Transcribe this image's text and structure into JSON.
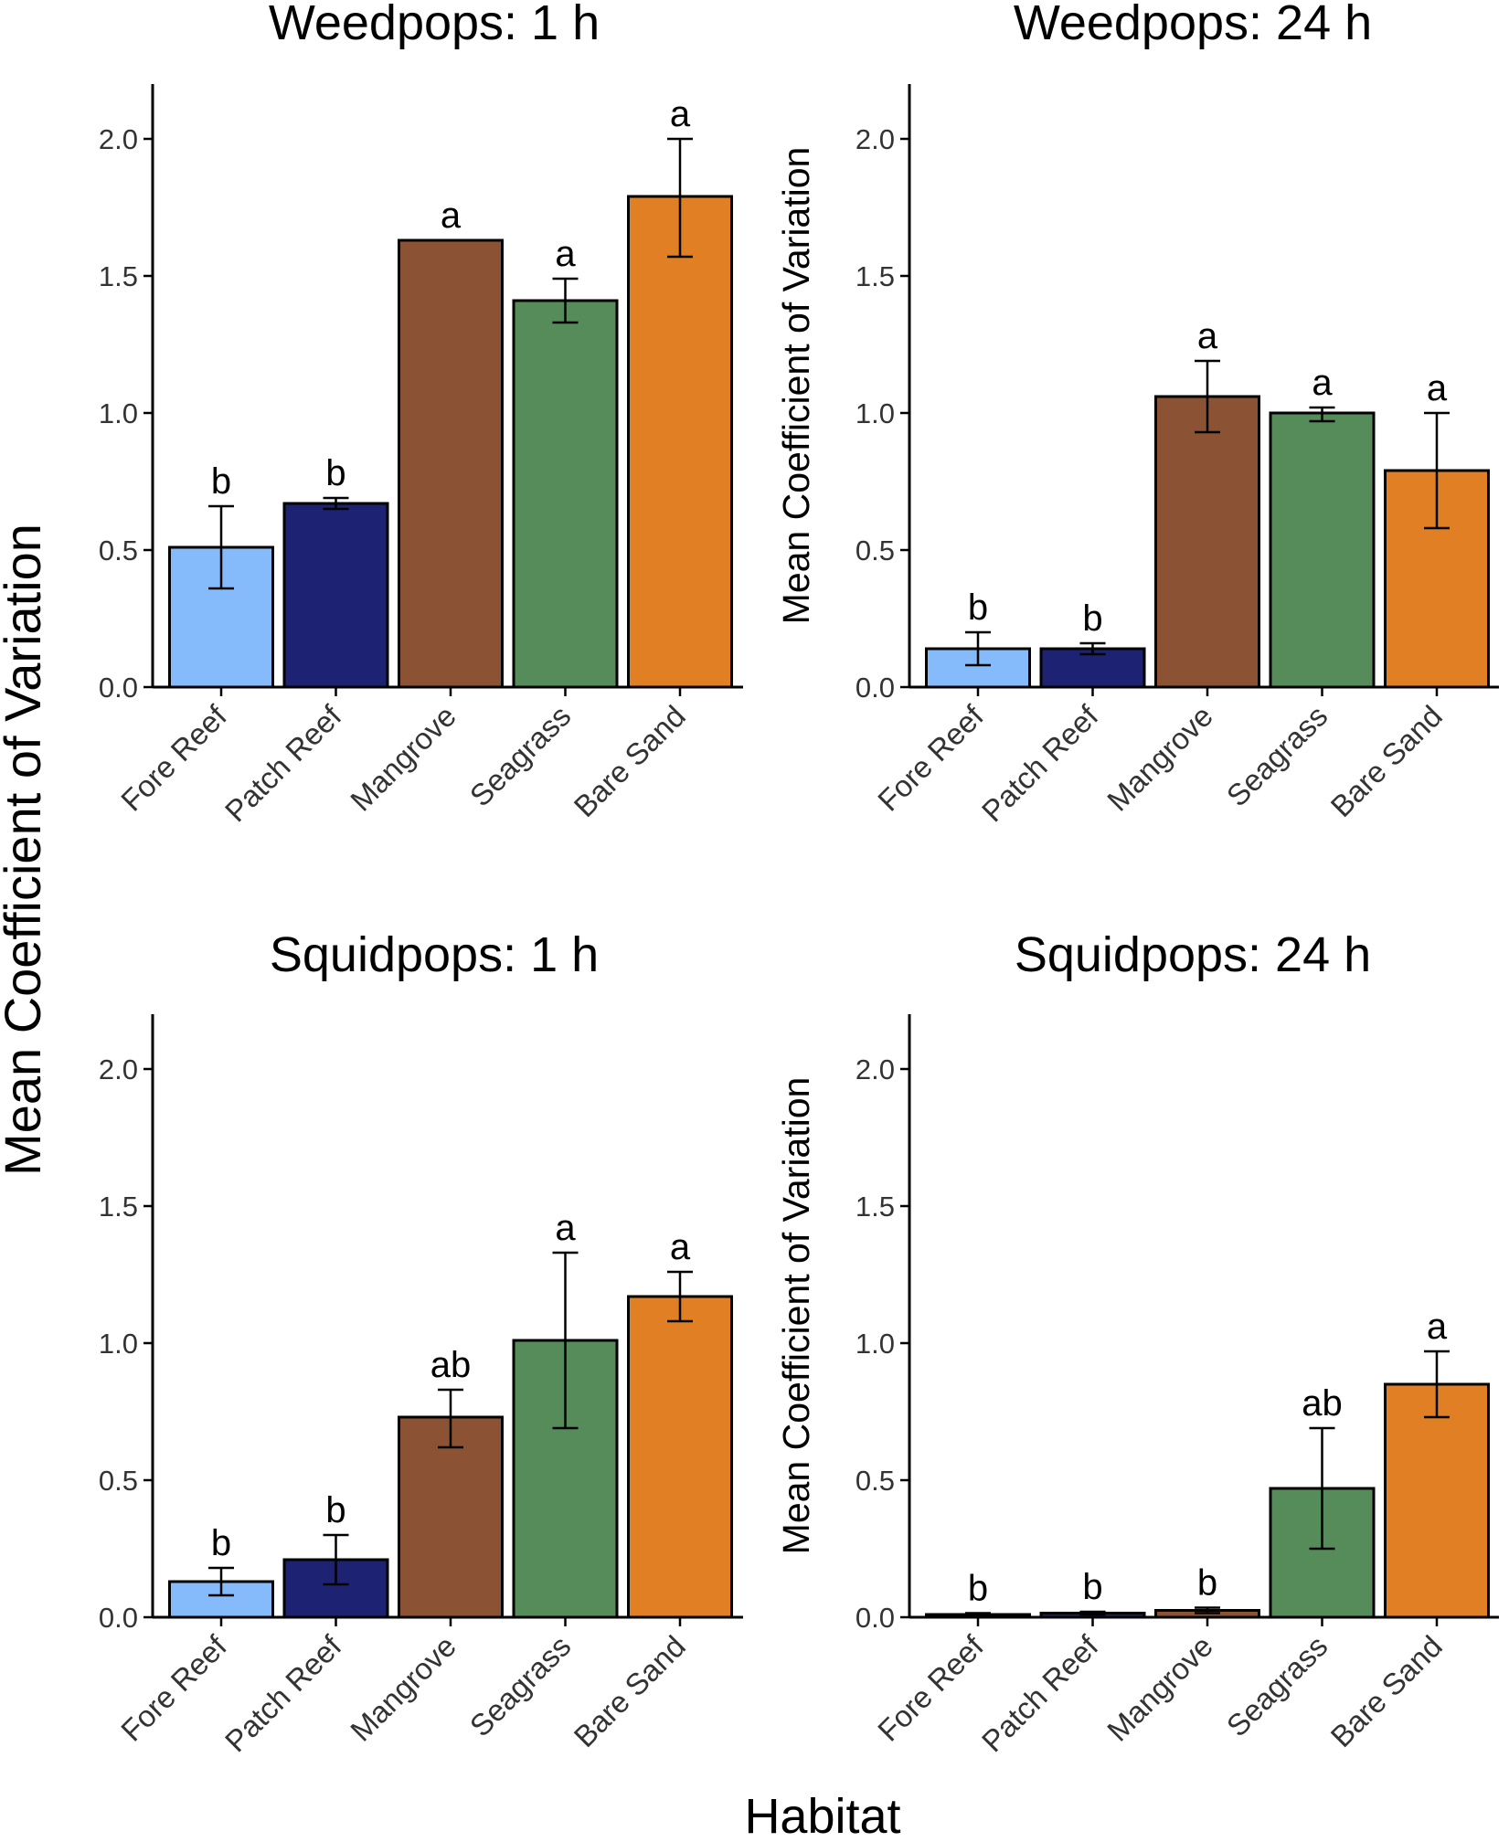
{
  "figure": {
    "shared_ylabel": "Mean Coefficient of Variation",
    "shared_xlabel": "Habitat",
    "panel_ylabel": "Mean Coefficient of Variation"
  },
  "colors": {
    "Fore Reef": "#86bbfb",
    "Patch Reef": "#1d2372",
    "Mangrove": "#8c5234",
    "Seagrass": "#568b5a",
    "Bare Sand": "#e07f23",
    "axis": "#000000",
    "tick_label": "#333333"
  },
  "chart_data": [
    {
      "type": "bar",
      "title": "Weedpops: 1 h",
      "categories": [
        "Fore Reef",
        "Patch Reef",
        "Mangrove",
        "Seagrass",
        "Bare Sand"
      ],
      "values": [
        0.51,
        0.67,
        1.63,
        1.41,
        1.79
      ],
      "errors": [
        [
          0.36,
          0.66
        ],
        [
          0.65,
          0.69
        ],
        [
          1.63,
          1.63
        ],
        [
          1.33,
          1.49
        ],
        [
          1.57,
          2.0
        ]
      ],
      "letters": [
        "b",
        "b",
        "a",
        "a",
        "a"
      ],
      "ylim": [
        0,
        2.2
      ],
      "yticks": [
        0.0,
        0.5,
        1.0,
        1.5,
        2.0
      ],
      "ytick_labels": [
        "0.0",
        "0.5",
        "1.0",
        "1.5",
        "2.0"
      ],
      "show_ylabel": false
    },
    {
      "type": "bar",
      "title": "Weedpops: 24 h",
      "categories": [
        "Fore Reef",
        "Patch Reef",
        "Mangrove",
        "Seagrass",
        "Bare Sand"
      ],
      "values": [
        0.14,
        0.14,
        1.06,
        1.0,
        0.79
      ],
      "errors": [
        [
          0.08,
          0.2
        ],
        [
          0.12,
          0.16
        ],
        [
          0.93,
          1.19
        ],
        [
          0.97,
          1.02
        ],
        [
          0.58,
          1.0
        ]
      ],
      "letters": [
        "b",
        "b",
        "a",
        "a",
        "a"
      ],
      "ylim": [
        0,
        2.2
      ],
      "yticks": [
        0.0,
        0.5,
        1.0,
        1.5,
        2.0
      ],
      "ytick_labels": [
        "0.0",
        "0.5",
        "1.0",
        "1.5",
        "2.0"
      ],
      "show_ylabel": true
    },
    {
      "type": "bar",
      "title": "Squidpops: 1 h",
      "categories": [
        "Fore Reef",
        "Patch Reef",
        "Mangrove",
        "Seagrass",
        "Bare Sand"
      ],
      "values": [
        0.13,
        0.21,
        0.73,
        1.01,
        1.17
      ],
      "errors": [
        [
          0.08,
          0.18
        ],
        [
          0.12,
          0.3
        ],
        [
          0.62,
          0.83
        ],
        [
          0.69,
          1.33
        ],
        [
          1.08,
          1.26
        ]
      ],
      "letters": [
        "b",
        "b",
        "ab",
        "a",
        "a"
      ],
      "ylim": [
        0,
        2.2
      ],
      "yticks": [
        0.0,
        0.5,
        1.0,
        1.5,
        2.0
      ],
      "ytick_labels": [
        "0.0",
        "0.5",
        "1.0",
        "1.5",
        "2.0"
      ],
      "show_ylabel": false
    },
    {
      "type": "bar",
      "title": "Squidpops: 24 h",
      "categories": [
        "Fore Reef",
        "Patch Reef",
        "Mangrove",
        "Seagrass",
        "Bare Sand"
      ],
      "values": [
        0.01,
        0.015,
        0.025,
        0.47,
        0.85
      ],
      "errors": [
        [
          0.005,
          0.015
        ],
        [
          0.01,
          0.02
        ],
        [
          0.015,
          0.035
        ],
        [
          0.25,
          0.69
        ],
        [
          0.73,
          0.97
        ]
      ],
      "letters": [
        "b",
        "b",
        "b",
        "ab",
        "a"
      ],
      "ylim": [
        0,
        2.2
      ],
      "yticks": [
        0.0,
        0.5,
        1.0,
        1.5,
        2.0
      ],
      "ytick_labels": [
        "0.0",
        "0.5",
        "1.0",
        "1.5",
        "2.0"
      ],
      "show_ylabel": true
    }
  ]
}
